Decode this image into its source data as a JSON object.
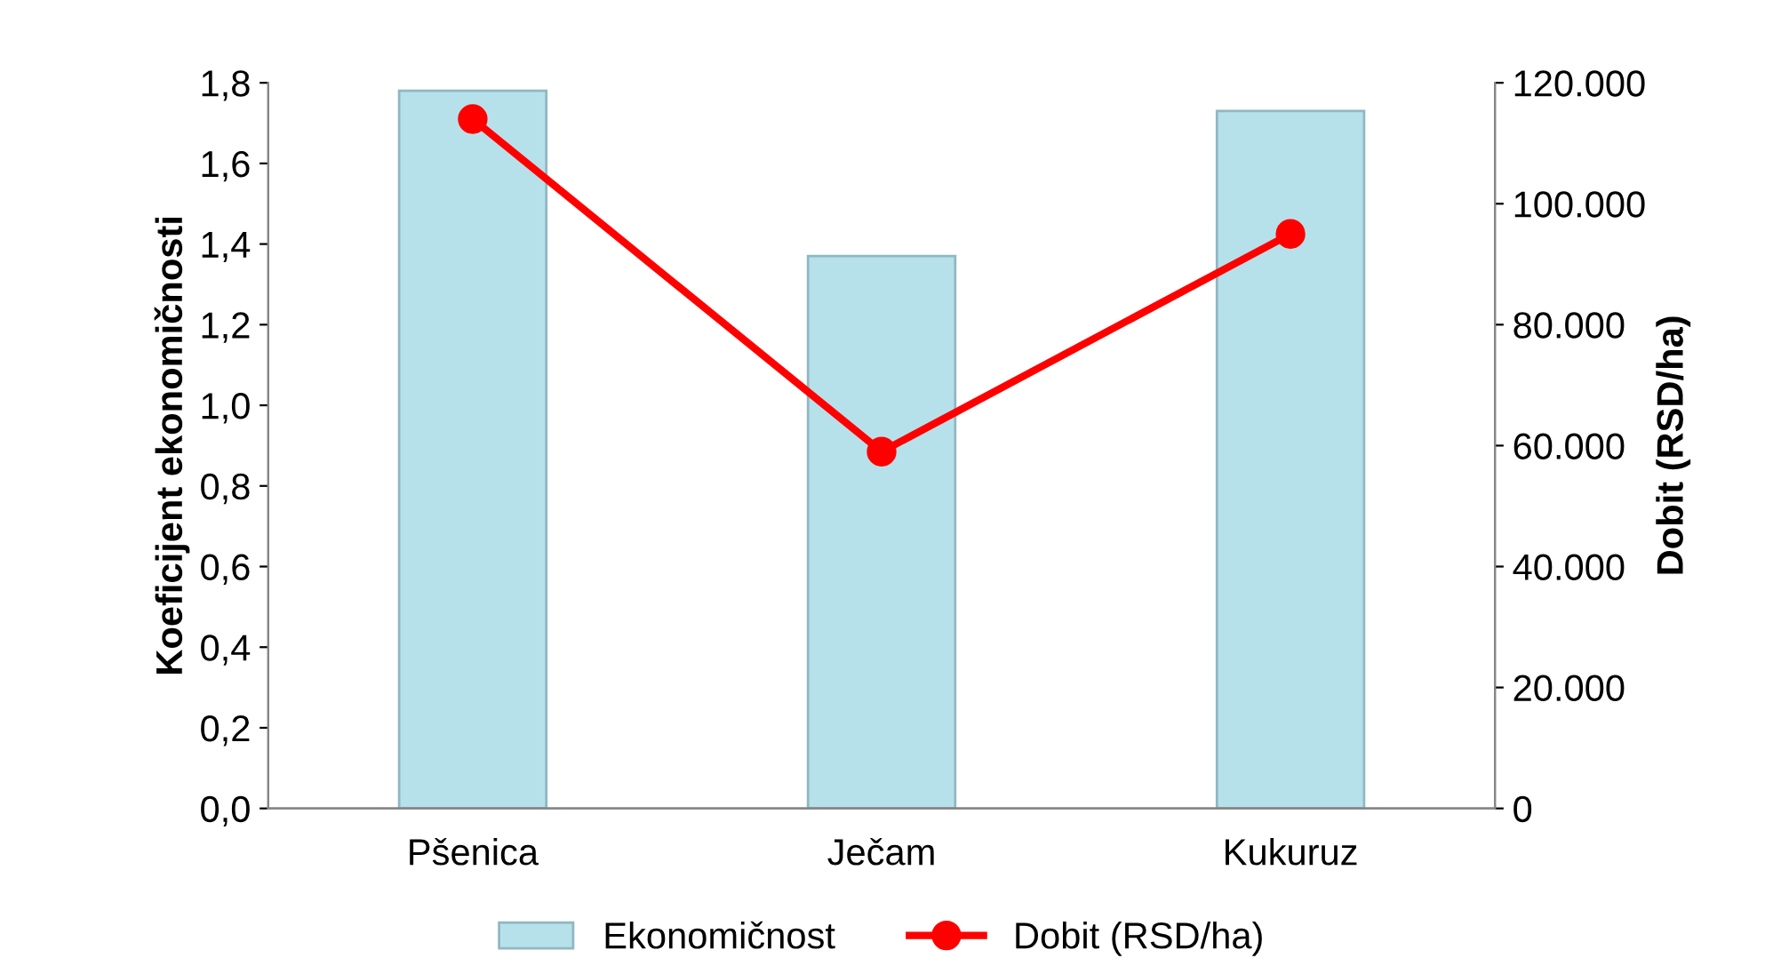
{
  "chart_data": {
    "type": "bar",
    "ylabel": "Koeficijent ekonomičnosti",
    "y2label": "Dobit (RSD/ha)",
    "categories": [
      "Pšenica",
      "Ječam",
      "Kukuruz"
    ],
    "series": [
      {
        "name": "Ekonomičnost",
        "color": "#b7e1ea",
        "values": [
          1.78,
          1.37,
          1.73
        ]
      },
      {
        "name": "Dobit (RSD/ha)",
        "type": "line",
        "axis": "y2",
        "color": "#ff0000",
        "marker": "circle",
        "values": [
          114000,
          59000,
          95000
        ]
      }
    ],
    "ylim": [
      0,
      1.8
    ],
    "yticks": [
      {
        "value": 0,
        "label": "0,0"
      },
      {
        "value": 0.2,
        "label": "0,2"
      },
      {
        "value": 0.4,
        "label": "0,4"
      },
      {
        "value": 0.6,
        "label": "0,6"
      },
      {
        "value": 0.8,
        "label": "0,8"
      },
      {
        "value": 1.0,
        "label": "1,0"
      },
      {
        "value": 1.2,
        "label": "1,2"
      },
      {
        "value": 1.4,
        "label": "1,4"
      },
      {
        "value": 1.6,
        "label": "1,6"
      },
      {
        "value": 1.8,
        "label": "1,8"
      }
    ],
    "y2lim": [
      0,
      120000
    ],
    "y2ticks": [
      0,
      {
        "value": 20000,
        "label": "20.000"
      },
      {
        "value": 40000,
        "label": "40.000"
      },
      {
        "value": 60000,
        "label": "60.000"
      },
      {
        "value": 80000,
        "label": "80.000"
      },
      {
        "value": 100000,
        "label": "100.000"
      },
      {
        "value": 120000,
        "label": "120.000"
      }
    ],
    "grid": false,
    "legend": "bottom"
  }
}
